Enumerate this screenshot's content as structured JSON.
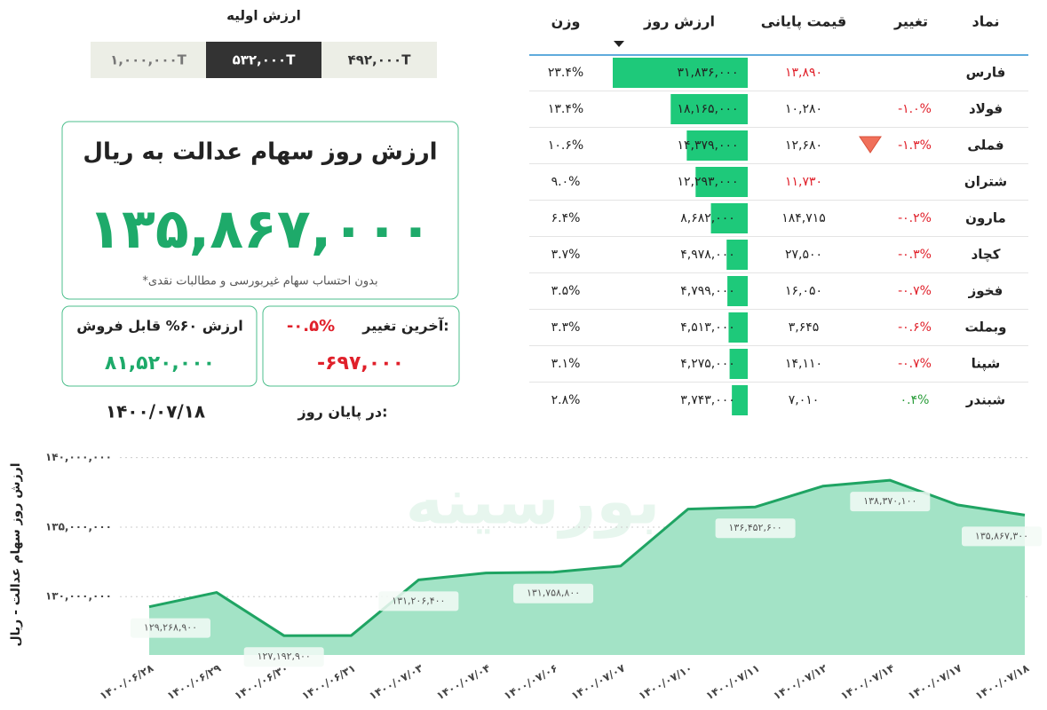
{
  "initial_value": {
    "title": "ارزش اولیه",
    "options": [
      "۱,۰۰۰,۰۰۰T",
      "۵۳۲,۰۰۰T",
      "۴۹۲,۰۰۰T"
    ],
    "selected": 1
  },
  "summary": {
    "title": "ارزش روز سهام عدالت به ریال",
    "value": "۱۳۵,۸۶۷,۰۰۰",
    "note": "*بدون احتساب سهام غیربورسی و مطالبات نقدی",
    "sellable_label": "ارزش ۶۰% قابل فروش",
    "sellable_value": "۸۱,۵۲۰,۰۰۰",
    "change_label": "آخرین تغییر:",
    "change_percent": "-۰.۵%",
    "change_value": "-۶۹۷,۰۰۰",
    "date_label": "در پایان روز:",
    "date": "۱۴۰۰/۰۷/۱۸"
  },
  "table": {
    "headers": [
      "نماد",
      "تغییر",
      "قیمت پایانی",
      "ارزش روز",
      "وزن"
    ],
    "bar_color": "#1ec97a",
    "rows": [
      {
        "symbol": "فارس",
        "change": null,
        "price": "۱۳,۸۹۰",
        "price_color": "#e0202a",
        "value": "۳۱,۸۳۶,۰۰۰",
        "weight": "۲۳.۴%"
      },
      {
        "symbol": "فولاد",
        "change": "-۱.۰%",
        "change_color": "#e0202a",
        "price": "۱۰,۲۸۰",
        "value": "۱۸,۱۶۵,۰۰۰",
        "weight": "۱۳.۴%"
      },
      {
        "symbol": "فملی",
        "change": "-۱.۳%",
        "change_color": "#e0202a",
        "price": "۱۲,۶۸۰",
        "value": "۱۴,۳۷۹,۰۰۰",
        "weight": "۱۰.۶%"
      },
      {
        "symbol": "شتران",
        "change": null,
        "price": "۱۱,۷۳۰",
        "price_color": "#e0202a",
        "value": "۱۲,۲۹۳,۰۰۰",
        "weight": "۹.۰%"
      },
      {
        "symbol": "مارون",
        "change": "-۰.۲%",
        "change_color": "#e0202a",
        "price": "۱۸۴,۷۱۵",
        "value": "۸,۶۸۲,۰۰۰",
        "weight": "۶.۴%"
      },
      {
        "symbol": "کچاد",
        "change": "-۰.۳%",
        "change_color": "#e0202a",
        "price": "۲۷,۵۰۰",
        "value": "۴,۹۷۸,۰۰۰",
        "weight": "۳.۷%"
      },
      {
        "symbol": "فخوز",
        "change": "-۰.۷%",
        "change_color": "#e0202a",
        "price": "۱۶,۰۵۰",
        "value": "۴,۷۹۹,۰۰۰",
        "weight": "۳.۵%"
      },
      {
        "symbol": "وبملت",
        "change": "-۰.۶%",
        "change_color": "#e0202a",
        "price": "۳,۶۴۵",
        "value": "۴,۵۱۳,۰۰۰",
        "weight": "۳.۳%"
      },
      {
        "symbol": "شپنا",
        "change": "-۰.۷%",
        "change_color": "#e0202a",
        "price": "۱۴,۱۱۰",
        "value": "۴,۲۷۵,۰۰۰",
        "weight": "۳.۱%"
      },
      {
        "symbol": "شبندر",
        "change": "۰.۴%",
        "change_color": "#2a9d3a",
        "price": "۷,۰۱۰",
        "value": "۳,۷۴۳,۰۰۰",
        "weight": "۲.۸%"
      }
    ]
  },
  "chart_data": {
    "type": "area",
    "ylabel": "ارزش روز سهام عدالت - ریال",
    "watermark": "بورسینه",
    "color": "#1fa463",
    "fill": "#a3e3c6",
    "grid": true,
    "categories": [
      "۱۴۰۰/۰۶/۲۸",
      "۱۴۰۰/۰۶/۲۹",
      "۱۴۰۰/۰۶/۳۰",
      "۱۴۰۰/۰۶/۳۱",
      "۱۴۰۰/۰۷/۰۳",
      "۱۴۰۰/۰۷/۰۴",
      "۱۴۰۰/۰۷/۰۶",
      "۱۴۰۰/۰۷/۰۷",
      "۱۴۰۰/۰۷/۱۰",
      "۱۴۰۰/۰۷/۱۱",
      "۱۴۰۰/۰۷/۱۲",
      "۱۴۰۰/۰۷/۱۴",
      "۱۴۰۰/۰۷/۱۷",
      "۱۴۰۰/۰۷/۱۸"
    ],
    "values": [
      129268900,
      130300000,
      127192900,
      127200000,
      131206400,
      131700000,
      131758800,
      132200000,
      136300000,
      136452600,
      137950000,
      138370100,
      136600000,
      135867300
    ],
    "value_labels": [
      "۱۲۹,۲۶۸,۹۰۰",
      null,
      "۱۲۷,۱۹۲,۹۰۰",
      null,
      "۱۳۱,۲۰۶,۴۰۰",
      null,
      "۱۳۱,۷۵۸,۸۰۰",
      null,
      null,
      "۱۳۶,۴۵۲,۶۰۰",
      null,
      "۱۳۸,۳۷۰,۱۰۰",
      null,
      "۱۳۵,۸۶۷,۳۰۰"
    ],
    "ylim": [
      125800000,
      141000000
    ],
    "yticks": [
      {
        "value": 130000000,
        "label": "۱۳۰,۰۰۰,۰۰۰"
      },
      {
        "value": 135000000,
        "label": "۱۳۵,۰۰۰,۰۰۰"
      },
      {
        "value": 140000000,
        "label": "۱۴۰,۰۰۰,۰۰۰"
      }
    ]
  }
}
